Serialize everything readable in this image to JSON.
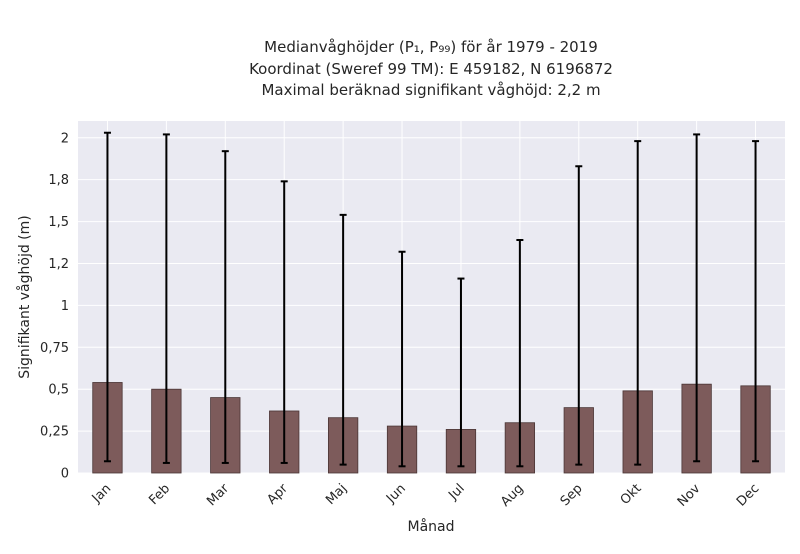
{
  "chart_data": {
    "type": "bar",
    "title_lines": [
      "Medianvåghöjder (P₁, P₉₉) för år 1979 - 2019",
      "Koordinat (Sweref 99 TM): E 459182, N 6196872",
      "Maximal beräknad signifikant våghöjd: 2,2 m"
    ],
    "xlabel": "Månad",
    "ylabel": "Signifikant våghöjd (m)",
    "categories": [
      "Jan",
      "Feb",
      "Mar",
      "Apr",
      "Maj",
      "Jun",
      "Jul",
      "Aug",
      "Sep",
      "Okt",
      "Nov",
      "Dec"
    ],
    "values": [
      0.54,
      0.5,
      0.45,
      0.37,
      0.33,
      0.28,
      0.26,
      0.3,
      0.39,
      0.49,
      0.53,
      0.52
    ],
    "p1": [
      0.07,
      0.06,
      0.06,
      0.06,
      0.05,
      0.04,
      0.04,
      0.04,
      0.05,
      0.05,
      0.07,
      0.07
    ],
    "p99": [
      2.03,
      2.02,
      1.92,
      1.74,
      1.54,
      1.32,
      1.16,
      1.39,
      1.83,
      1.98,
      2.02,
      1.98
    ],
    "ylim": [
      0,
      2.1
    ],
    "yticks": [
      0,
      0.25,
      0.5,
      0.75,
      1,
      1.25,
      1.5,
      1.75,
      2
    ],
    "ytick_labels": [
      "0",
      "0,25",
      "0,5",
      "0,75",
      "1",
      "1,2",
      "1,5",
      "1,8",
      "2"
    ],
    "grid": true,
    "colors": {
      "bar": "#7d5b5b",
      "bar_edge": "#4a3535",
      "errorbar": "#000000",
      "plot_background": "#eaeaf2",
      "grid": "#ffffff"
    }
  }
}
